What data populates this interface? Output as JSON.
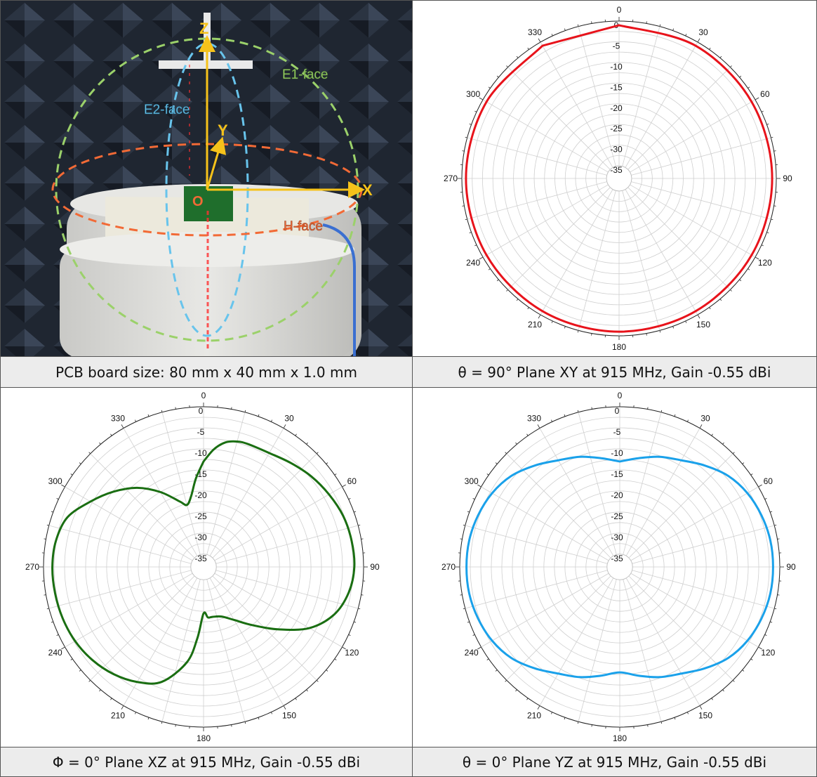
{
  "photo": {
    "axes": {
      "x": "X",
      "y": "Y",
      "z": "Z",
      "origin": "O"
    },
    "faces": {
      "e1": "E1-face",
      "e2": "E2-face",
      "h": "H-face"
    },
    "caption": "PCB board size: 80 mm x 40 mm x 1.0 mm",
    "colors": {
      "e1": "#9bd16a",
      "e2": "#68c4ec",
      "h": "#f26a36",
      "axis": "#f6c21a"
    }
  },
  "captions": {
    "xy": "θ  = 90° Plane XY at 915 MHz, Gain -0.55 dBi",
    "xz": "Φ = 0° Plane XZ at 915 MHz, Gain -0.55 dBi",
    "yz": "θ  = 0° Plane YZ at 915 MHz, Gain -0.55 dBi"
  },
  "chart_data": [
    {
      "type": "polar",
      "angle_labels": [
        "0",
        "30",
        "60",
        "90",
        "120",
        "150",
        "180",
        "210",
        "240",
        "270",
        "300",
        "330"
      ],
      "radial_ticks": [
        "0",
        "-5",
        "-10",
        "-15",
        "-20",
        "-25",
        "-30",
        "-35"
      ],
      "rlim": [
        -35,
        0
      ],
      "grid": true,
      "series": [
        {
          "color": "#e8131b",
          "points": [
            [
              0,
              -1
            ],
            [
              30,
              -1
            ],
            [
              60,
              -1
            ],
            [
              90,
              -1
            ],
            [
              120,
              -1
            ],
            [
              150,
              -1
            ],
            [
              180,
              -1
            ],
            [
              210,
              -1
            ],
            [
              240,
              -1
            ],
            [
              270,
              -1
            ],
            [
              300,
              -1
            ],
            [
              330,
              -1
            ]
          ]
        }
      ]
    },
    {
      "type": "polar",
      "angle_labels": [
        "0",
        "30",
        "60",
        "90",
        "120",
        "150",
        "180",
        "210",
        "240",
        "270",
        "300",
        "330"
      ],
      "radial_ticks": [
        "0",
        "-5",
        "-10",
        "-15",
        "-20",
        "-25",
        "-30",
        "-35"
      ],
      "rlim": [
        -35,
        0
      ],
      "grid": true,
      "series": [
        {
          "color": "#1a6e12",
          "points": [
            [
              0,
              -13
            ],
            [
              5,
              -10
            ],
            [
              10,
              -8
            ],
            [
              15,
              -7.2
            ],
            [
              20,
              -7
            ],
            [
              30,
              -6.8
            ],
            [
              40,
              -5.8
            ],
            [
              50,
              -4.6
            ],
            [
              60,
              -3.6
            ],
            [
              70,
              -2.7
            ],
            [
              80,
              -2.3
            ],
            [
              90,
              -2.2
            ],
            [
              100,
              -3
            ],
            [
              110,
              -5
            ],
            [
              120,
              -9
            ],
            [
              130,
              -15
            ],
            [
              140,
              -20
            ],
            [
              150,
              -23.5
            ],
            [
              160,
              -25.5
            ],
            [
              170,
              -26
            ],
            [
              175,
              -26
            ],
            [
              180,
              -27
            ],
            [
              185,
              -21
            ],
            [
              190,
              -15
            ],
            [
              200,
              -9
            ],
            [
              210,
              -6.5
            ],
            [
              220,
              -4.8
            ],
            [
              230,
              -3.6
            ],
            [
              240,
              -2.8
            ],
            [
              250,
              -2.4
            ],
            [
              260,
              -2.2
            ],
            [
              270,
              -2.1
            ],
            [
              280,
              -2.4
            ],
            [
              290,
              -3.6
            ],
            [
              300,
              -7
            ],
            [
              310,
              -10.2
            ],
            [
              320,
              -13.5
            ],
            [
              330,
              -17.5
            ],
            [
              340,
              -21.5
            ],
            [
              345,
              -22.8
            ],
            [
              350,
              -21
            ],
            [
              355,
              -17
            ],
            [
              360,
              -13
            ]
          ]
        }
      ]
    },
    {
      "type": "polar",
      "angle_labels": [
        "0",
        "30",
        "60",
        "90",
        "120",
        "150",
        "180",
        "210",
        "240",
        "270",
        "300",
        "330"
      ],
      "radial_ticks": [
        "0",
        "-5",
        "-10",
        "-15",
        "-20",
        "-25",
        "-30",
        "-35"
      ],
      "rlim": [
        -35,
        0
      ],
      "grid": true,
      "series": [
        {
          "color": "#1aa1ea",
          "points": [
            [
              0,
              -13
            ],
            [
              10,
              -11.8
            ],
            [
              20,
              -10.2
            ],
            [
              30,
              -8.8
            ],
            [
              40,
              -6.6
            ],
            [
              50,
              -4.4
            ],
            [
              60,
              -3
            ],
            [
              70,
              -2.2
            ],
            [
              80,
              -1.7
            ],
            [
              90,
              -1.6
            ],
            [
              100,
              -1.7
            ],
            [
              110,
              -2.2
            ],
            [
              120,
              -3
            ],
            [
              130,
              -4.4
            ],
            [
              140,
              -6.6
            ],
            [
              150,
              -8.8
            ],
            [
              160,
              -10.2
            ],
            [
              170,
              -11.8
            ],
            [
              180,
              -13
            ],
            [
              190,
              -11.8
            ],
            [
              200,
              -10.2
            ],
            [
              210,
              -8.8
            ],
            [
              220,
              -6.6
            ],
            [
              230,
              -4.4
            ],
            [
              240,
              -3
            ],
            [
              250,
              -2.2
            ],
            [
              260,
              -1.7
            ],
            [
              270,
              -1.6
            ],
            [
              280,
              -1.7
            ],
            [
              290,
              -2.2
            ],
            [
              300,
              -3
            ],
            [
              310,
              -4.4
            ],
            [
              320,
              -6.6
            ],
            [
              330,
              -8.8
            ],
            [
              340,
              -10.2
            ],
            [
              350,
              -11.8
            ],
            [
              360,
              -13
            ]
          ]
        }
      ]
    }
  ]
}
